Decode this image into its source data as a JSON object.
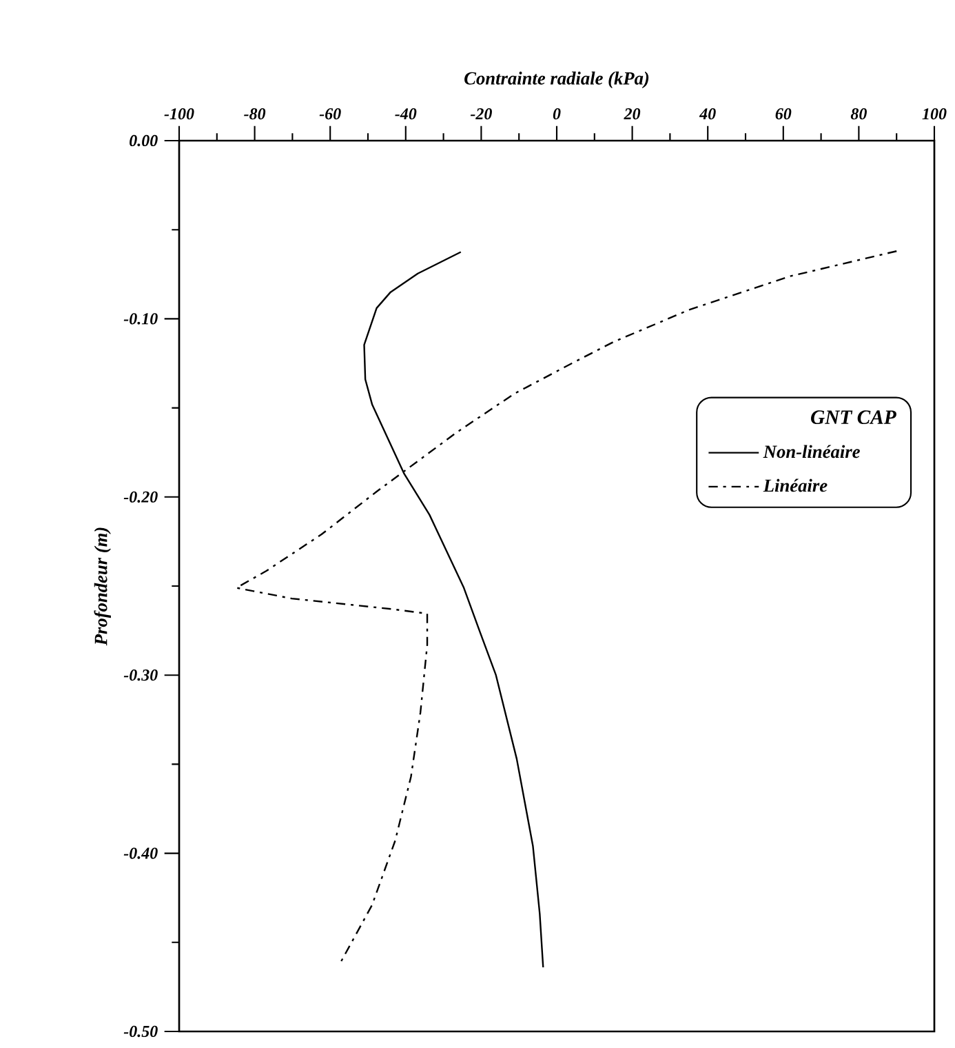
{
  "chart_data": {
    "type": "line",
    "xlabel": "Contrainte radiale (kPa)",
    "ylabel": "Profondeur (m)",
    "legend_title": "GNT CAP",
    "legend": "right",
    "xlim": [
      -100,
      100
    ],
    "ylim": [
      -0.5,
      0
    ],
    "xticks": [
      -100,
      {
        "value": -90,
        "label": null
      },
      -80,
      {
        "value": -70,
        "label": null
      },
      -60,
      {
        "value": -50,
        "label": null
      },
      -40,
      {
        "value": -30,
        "label": null
      },
      -20,
      {
        "value": -10,
        "label": null
      },
      0,
      {
        "value": 10,
        "label": null
      },
      20,
      {
        "value": 30,
        "label": null
      },
      40,
      {
        "value": 50,
        "label": null
      },
      60,
      {
        "value": 70,
        "label": null
      },
      80,
      {
        "value": 90,
        "label": null
      },
      100
    ],
    "yticks": [
      {
        "value": 0,
        "label": "0.00"
      },
      {
        "value": -0.05,
        "label": null
      },
      {
        "value": -0.1,
        "label": "-0.10"
      },
      {
        "value": -0.15,
        "label": null
      },
      {
        "value": -0.2,
        "label": "-0.20"
      },
      {
        "value": -0.25,
        "label": null
      },
      {
        "value": -0.3,
        "label": "-0.30"
      },
      {
        "value": -0.35,
        "label": null
      },
      {
        "value": -0.4,
        "label": "-0.40"
      },
      {
        "value": -0.45,
        "label": null
      },
      {
        "value": -0.5,
        "label": "-0.50"
      }
    ],
    "series": [
      {
        "name": "Non-linéaire",
        "color": "#000000",
        "line_style": "solid",
        "x": [
          -25.4,
          -36.8,
          -44.0,
          -47.7,
          -51.0,
          -50.7,
          -48.9,
          -40.4,
          -33.7,
          -24.6,
          -20.3,
          -16.1,
          -10.6,
          -6.3,
          -4.5,
          -3.6
        ],
        "values": [
          -0.0625,
          -0.0746,
          -0.085,
          -0.094,
          -0.1146,
          -0.134,
          -0.148,
          -0.187,
          -0.21,
          -0.251,
          -0.276,
          -0.3,
          -0.347,
          -0.396,
          -0.434,
          -0.464
        ]
      },
      {
        "name": "Linéaire",
        "color": "#000000",
        "line_style": "dashed",
        "x": [
          90,
          62,
          35,
          15,
          4,
          -11.2,
          -26.4,
          -47.7,
          -62.3,
          -76.9,
          -84.8,
          -70.2,
          -43.4,
          -34.3,
          -34.3,
          -36.1,
          -38.6,
          -42.8,
          -48.9,
          -57.7
        ],
        "values": [
          -0.062,
          -0.076,
          -0.095,
          -0.113,
          -0.125,
          -0.142,
          -0.1636,
          -0.197,
          -0.221,
          -0.2415,
          -0.251,
          -0.257,
          -0.263,
          -0.2655,
          -0.283,
          -0.321,
          -0.357,
          -0.393,
          -0.429,
          -0.463
        ]
      }
    ]
  }
}
